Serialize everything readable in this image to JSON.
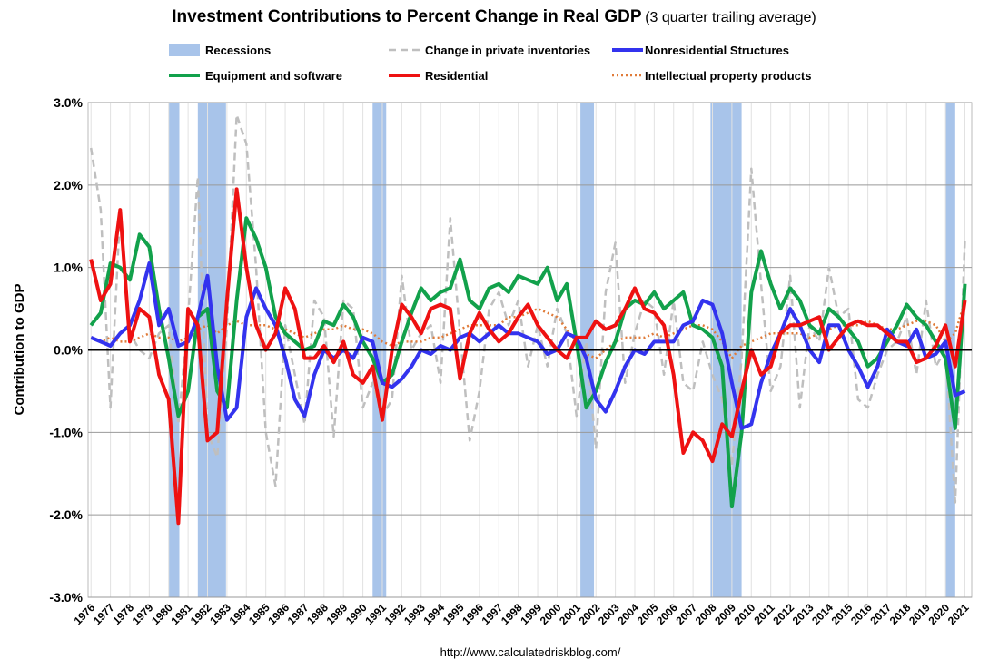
{
  "chart_data": {
    "type": "line",
    "title": "Investment Contributions to Percent Change in Real GDP",
    "subtitle": "(3 quarter trailing average)",
    "y_label": "Contribution to GDP",
    "source": "http://www.calculatedriskblog.com/",
    "xlim": [
      1975.85,
      2021.35
    ],
    "xticks": [
      1976,
      1977,
      1978,
      1979,
      1980,
      1981,
      1982,
      1983,
      1984,
      1985,
      1986,
      1987,
      1988,
      1989,
      1990,
      1991,
      1992,
      1993,
      1994,
      1995,
      1996,
      1997,
      1998,
      1999,
      2000,
      2001,
      2002,
      2003,
      2004,
      2005,
      2006,
      2007,
      2008,
      2009,
      2010,
      2011,
      2012,
      2013,
      2014,
      2015,
      2016,
      2017,
      2018,
      2019,
      2020,
      2021
    ],
    "ylim": [
      -3,
      3
    ],
    "yticks": [
      {
        "value": -3,
        "label": "-3.0%"
      },
      {
        "value": -2,
        "label": "-2.0%"
      },
      {
        "value": -1,
        "label": "-1.0%"
      },
      {
        "value": 0,
        "label": "0.0%"
      },
      {
        "value": 1,
        "label": "1.0%"
      },
      {
        "value": 2,
        "label": "2.0%"
      },
      {
        "value": 3,
        "label": "3.0%"
      }
    ],
    "grid": true,
    "recessions": {
      "name": "Recessions",
      "color": "#a8c4ea",
      "ranges": [
        [
          1980.0,
          1980.55
        ],
        [
          1981.5,
          1982.95
        ],
        [
          1990.5,
          1991.2
        ],
        [
          2001.2,
          2001.9
        ],
        [
          2007.9,
          2009.5
        ],
        [
          2020.0,
          2020.5
        ]
      ]
    },
    "x": [
      1976,
      1976.5,
      1977,
      1977.5,
      1978,
      1978.5,
      1979,
      1979.5,
      1980,
      1980.5,
      1981,
      1981.5,
      1982,
      1982.5,
      1983,
      1983.5,
      1984,
      1984.5,
      1985,
      1985.5,
      1986,
      1986.5,
      1987,
      1987.5,
      1988,
      1988.5,
      1989,
      1989.5,
      1990,
      1990.5,
      1991,
      1991.5,
      1992,
      1992.5,
      1993,
      1993.5,
      1994,
      1994.5,
      1995,
      1995.5,
      1996,
      1996.5,
      1997,
      1997.5,
      1998,
      1998.5,
      1999,
      1999.5,
      2000,
      2000.5,
      2001,
      2001.5,
      2002,
      2002.5,
      2003,
      2003.5,
      2004,
      2004.5,
      2005,
      2005.5,
      2006,
      2006.5,
      2007,
      2007.5,
      2008,
      2008.5,
      2009,
      2009.5,
      2010,
      2010.5,
      2011,
      2011.5,
      2012,
      2012.5,
      2013,
      2013.5,
      2014,
      2014.5,
      2015,
      2015.5,
      2016,
      2016.5,
      2017,
      2017.5,
      2018,
      2018.5,
      2019,
      2019.5,
      2020,
      2020.5,
      2021
    ],
    "series": [
      {
        "name": "Change in private inventories",
        "color": "#bfbfbf",
        "style": "dashed",
        "values": [
          2.45,
          1.7,
          -0.7,
          1.7,
          0.2,
          0.0,
          -0.1,
          0.2,
          0.3,
          -0.9,
          0.4,
          2.1,
          -1.0,
          -1.3,
          0.3,
          2.85,
          2.5,
          1.0,
          -1.0,
          -1.65,
          0.3,
          -0.3,
          -0.9,
          0.6,
          0.4,
          -1.05,
          0.6,
          0.5,
          -0.7,
          -0.4,
          -0.8,
          -0.6,
          0.9,
          0.0,
          0.2,
          0.3,
          -0.4,
          1.6,
          0.2,
          -1.1,
          -0.5,
          0.5,
          0.7,
          0.3,
          0.6,
          -0.2,
          0.3,
          -0.2,
          0.5,
          0.2,
          -0.8,
          0.1,
          -1.2,
          0.7,
          1.3,
          -0.4,
          0.2,
          0.6,
          0.5,
          -0.3,
          0.6,
          -0.4,
          -0.5,
          0.1,
          -0.3,
          -0.6,
          -1.4,
          -0.1,
          2.2,
          0.8,
          -0.5,
          -0.2,
          0.9,
          -0.7,
          0.3,
          0.1,
          1.0,
          0.4,
          0.5,
          -0.6,
          -0.7,
          -0.3,
          0.0,
          0.1,
          0.4,
          -0.3,
          0.6,
          -0.2,
          0.0,
          -1.85,
          1.35
        ]
      },
      {
        "name": "Intellectual property products",
        "color": "#e07b39",
        "style": "dotted",
        "values": [
          0.15,
          0.1,
          0.15,
          0.1,
          0.1,
          0.15,
          0.2,
          0.15,
          0.15,
          0.1,
          0.15,
          0.25,
          0.3,
          0.2,
          0.3,
          0.35,
          0.3,
          0.3,
          0.3,
          0.25,
          0.25,
          0.2,
          0.15,
          0.2,
          0.25,
          0.25,
          0.3,
          0.25,
          0.25,
          0.2,
          0.1,
          0.05,
          0.1,
          0.1,
          0.1,
          0.15,
          0.15,
          0.2,
          0.25,
          0.3,
          0.3,
          0.3,
          0.3,
          0.4,
          0.4,
          0.45,
          0.5,
          0.45,
          0.4,
          0.25,
          0.1,
          -0.05,
          -0.1,
          0.0,
          0.1,
          0.15,
          0.15,
          0.15,
          0.2,
          0.15,
          0.2,
          0.25,
          0.3,
          0.3,
          0.25,
          0.1,
          -0.1,
          0.05,
          0.1,
          0.15,
          0.2,
          0.2,
          0.2,
          0.2,
          0.15,
          0.2,
          0.25,
          0.3,
          0.3,
          0.3,
          0.35,
          0.3,
          0.25,
          0.25,
          0.3,
          0.35,
          0.35,
          0.3,
          0.1,
          0.2,
          0.6
        ]
      },
      {
        "name": "Equipment and software",
        "color": "#12a14b",
        "style": "solid",
        "values": [
          0.3,
          0.45,
          1.05,
          1.0,
          0.85,
          1.4,
          1.25,
          0.5,
          -0.1,
          -0.8,
          -0.5,
          0.4,
          0.5,
          -0.5,
          -0.7,
          0.6,
          1.6,
          1.35,
          1.0,
          0.4,
          0.2,
          0.1,
          0.0,
          0.05,
          0.35,
          0.3,
          0.55,
          0.4,
          0.1,
          -0.1,
          -0.4,
          -0.3,
          0.1,
          0.45,
          0.75,
          0.6,
          0.7,
          0.75,
          1.1,
          0.6,
          0.5,
          0.75,
          0.8,
          0.7,
          0.9,
          0.85,
          0.8,
          1.0,
          0.6,
          0.8,
          0.1,
          -0.7,
          -0.5,
          -0.15,
          0.1,
          0.5,
          0.6,
          0.55,
          0.7,
          0.5,
          0.6,
          0.7,
          0.3,
          0.25,
          0.15,
          -0.2,
          -1.9,
          -1.0,
          0.7,
          1.2,
          0.8,
          0.5,
          0.75,
          0.6,
          0.3,
          0.2,
          0.5,
          0.4,
          0.25,
          0.1,
          -0.2,
          -0.1,
          0.1,
          0.3,
          0.55,
          0.4,
          0.3,
          0.1,
          -0.1,
          -0.95,
          0.8
        ]
      },
      {
        "name": "Nonresidential Structures",
        "color": "#3333ee",
        "style": "solid",
        "values": [
          0.15,
          0.1,
          0.05,
          0.2,
          0.3,
          0.6,
          1.05,
          0.3,
          0.5,
          0.05,
          0.1,
          0.4,
          0.9,
          -0.2,
          -0.85,
          -0.7,
          0.4,
          0.75,
          0.5,
          0.3,
          -0.1,
          -0.6,
          -0.8,
          -0.3,
          0.0,
          -0.1,
          0.0,
          -0.1,
          0.15,
          0.1,
          -0.4,
          -0.45,
          -0.35,
          -0.2,
          0.0,
          -0.05,
          0.05,
          0.0,
          0.15,
          0.2,
          0.1,
          0.2,
          0.3,
          0.2,
          0.2,
          0.15,
          0.1,
          -0.05,
          0.0,
          0.2,
          0.15,
          -0.1,
          -0.6,
          -0.75,
          -0.5,
          -0.2,
          0.0,
          -0.05,
          0.1,
          0.1,
          0.1,
          0.3,
          0.35,
          0.6,
          0.55,
          0.2,
          -0.4,
          -0.95,
          -0.9,
          -0.4,
          -0.05,
          0.2,
          0.5,
          0.3,
          0.0,
          -0.15,
          0.3,
          0.3,
          0.0,
          -0.2,
          -0.45,
          -0.2,
          0.25,
          0.1,
          0.05,
          0.25,
          -0.1,
          -0.05,
          0.1,
          -0.55,
          -0.5
        ]
      },
      {
        "name": "Residential",
        "color": "#ee1111",
        "style": "solid",
        "values": [
          1.1,
          0.6,
          0.8,
          1.7,
          0.1,
          0.5,
          0.4,
          -0.3,
          -0.6,
          -2.1,
          0.5,
          0.3,
          -1.1,
          -1.0,
          0.6,
          1.95,
          1.0,
          0.3,
          0.0,
          0.2,
          0.75,
          0.5,
          -0.1,
          -0.1,
          0.05,
          -0.15,
          0.1,
          -0.3,
          -0.4,
          -0.2,
          -0.85,
          0.0,
          0.55,
          0.4,
          0.2,
          0.5,
          0.55,
          0.5,
          -0.35,
          0.2,
          0.45,
          0.25,
          0.1,
          0.2,
          0.4,
          0.55,
          0.3,
          0.15,
          0.0,
          -0.1,
          0.15,
          0.15,
          0.35,
          0.25,
          0.3,
          0.5,
          0.75,
          0.5,
          0.45,
          0.3,
          -0.3,
          -1.25,
          -1.0,
          -1.1,
          -1.35,
          -0.9,
          -1.05,
          -0.5,
          0.0,
          -0.3,
          -0.2,
          0.2,
          0.3,
          0.3,
          0.35,
          0.4,
          0.0,
          0.15,
          0.3,
          0.35,
          0.3,
          0.3,
          0.2,
          0.1,
          0.1,
          -0.15,
          -0.1,
          0.05,
          0.3,
          -0.2,
          0.6
        ]
      }
    ]
  }
}
